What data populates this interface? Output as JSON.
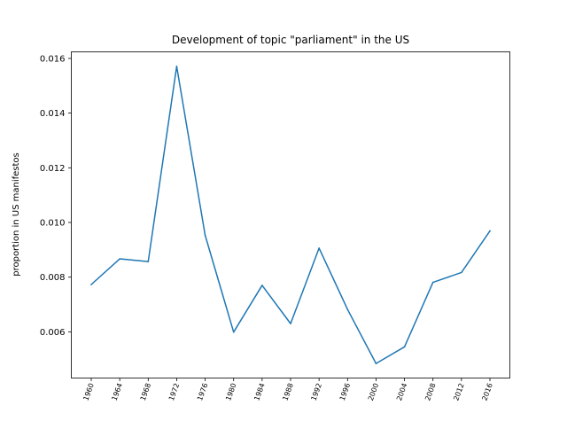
{
  "chart_data": {
    "type": "line",
    "title": "Development of topic \"parliament\" in the US",
    "xlabel": "",
    "ylabel": "proportion in US manifestos",
    "x": [
      "1960",
      "1964",
      "1968",
      "1972",
      "1976",
      "1980",
      "1984",
      "1988",
      "1992",
      "1996",
      "2000",
      "2004",
      "2008",
      "2012",
      "2016"
    ],
    "series": [
      {
        "values": [
          0.00773,
          0.00867,
          0.00857,
          0.01571,
          0.00953,
          0.00599,
          0.0077,
          0.0063,
          0.00906,
          0.00682,
          0.00484,
          0.00545,
          0.00781,
          0.00817,
          0.00969
        ]
      }
    ],
    "yticks": [
      "0.006",
      "0.008",
      "0.010",
      "0.012",
      "0.014",
      "0.016"
    ],
    "ylim": [
      0.00431,
      0.01624
    ],
    "grid": false,
    "legend": "none",
    "line_color": "#1f77b4"
  }
}
